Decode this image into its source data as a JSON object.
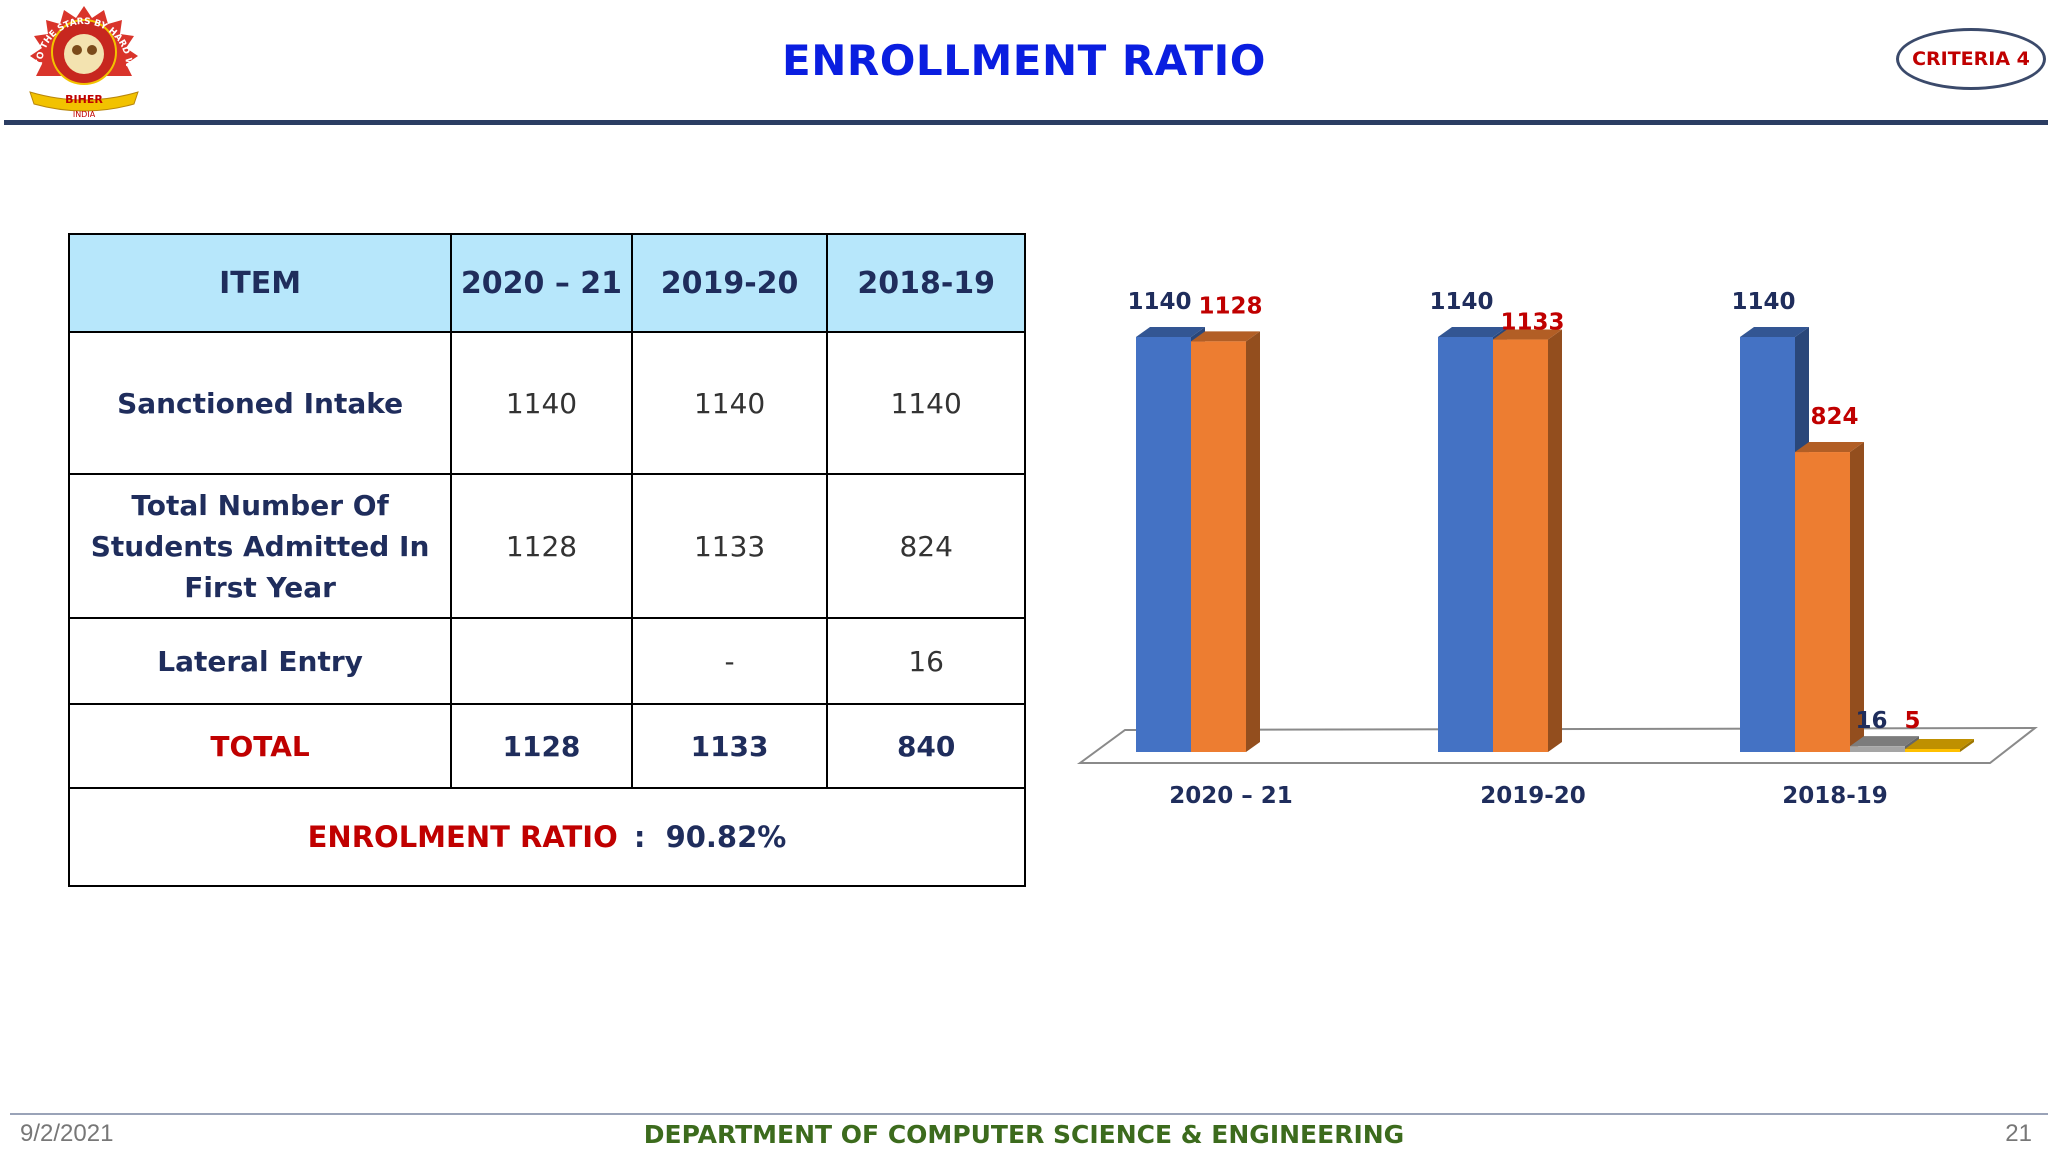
{
  "header": {
    "title": "ENROLLMENT RATIO",
    "badge": "CRITERIA 4",
    "logo": {
      "icon": "institution-seal-icon",
      "ring_text": "TO THE STARS BY HARD WAYS",
      "banner_text": "BIHER",
      "sub_text": "INDIA"
    }
  },
  "table": {
    "headers": [
      "ITEM",
      "2020 – 21",
      "2019-20",
      "2018-19"
    ],
    "rows": [
      {
        "label": "Sanctioned Intake",
        "values": [
          "1140",
          "1140",
          "1140"
        ]
      },
      {
        "label": "Total Number Of Students Admitted In First Year",
        "values": [
          "1128",
          "1133",
          "824"
        ]
      },
      {
        "label": "Lateral Entry",
        "values": [
          "",
          "-",
          "16"
        ]
      }
    ],
    "total": {
      "label": "TOTAL",
      "values": [
        "1128",
        "1133",
        "840"
      ]
    },
    "ratio": {
      "label": "ENROLMENT RATIO",
      "separator": ":",
      "value": "90.82%"
    }
  },
  "chart_data": {
    "type": "bar",
    "categories": [
      "2020 – 21",
      "2019-20",
      "2018-19"
    ],
    "series": [
      {
        "values": [
          1140,
          1140,
          1140
        ],
        "color": "#4472c4",
        "label_color": "#1f2d5c"
      },
      {
        "values": [
          1128,
          1133,
          824
        ],
        "color": "#ed7d31",
        "label_color": "#c00000"
      },
      {
        "values": [
          null,
          null,
          16
        ],
        "color": "#a5a5a5",
        "label_color": "#1f2d5c"
      },
      {
        "values": [
          null,
          null,
          5
        ],
        "color": "#ffc000",
        "label_color": "#c00000"
      }
    ],
    "data_labels": true,
    "three_d": true,
    "ylim": [
      0,
      1140
    ],
    "grid": false,
    "legend": "none",
    "title": "",
    "xlabel": "",
    "ylabel": ""
  },
  "footer": {
    "date": "9/2/2021",
    "department": "DEPARTMENT OF COMPUTER SCIENCE & ENGINEERING",
    "page": "21"
  },
  "colors": {
    "title": "#0a1ee0",
    "accent_red": "#c00000",
    "navy": "#1f2d5c",
    "header_fill": "#b7e7fb",
    "footer_green": "#3c6b1d"
  }
}
